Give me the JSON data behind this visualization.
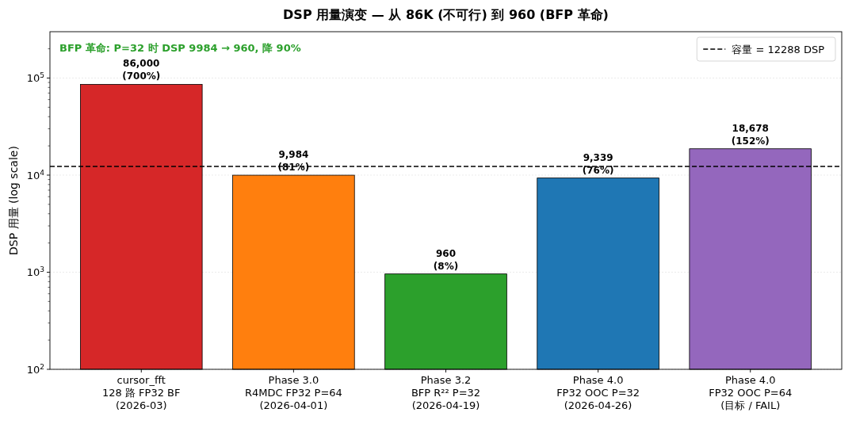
{
  "chart_data": {
    "type": "bar",
    "title": "DSP 用量演变 — 从 86K (不可行) 到 960 (BFP 革命)",
    "ylabel": "DSP 用量 (log scale)",
    "categories": [
      "cursor_fft\n128 路 FP32 BF\n(2026-03)",
      "Phase 3.0\nR4MDC FP32 P=64\n(2026-04-01)",
      "Phase 3.2\nBFP R²² P=32\n(2026-04-19)",
      "Phase 4.0\nFP32 OOC P=32\n(2026-04-26)",
      "Phase 4.0\nFP32 OOC P=64\n(目标 / FAIL)"
    ],
    "values": [
      86000,
      9984,
      960,
      9339,
      18678
    ],
    "colors": [
      "#d62728",
      "#ff7f0e",
      "#2ca02c",
      "#1f77b4",
      "#9467bd"
    ],
    "value_labels": [
      "86,000\n(700%)",
      "9,984\n(81%)",
      "960\n(8%)",
      "9,339\n(76%)",
      "18,678\n(152%)"
    ],
    "log": "y",
    "ylim": [
      100,
      300000
    ],
    "yticks": [
      {
        "value": 100,
        "label": "10$^{2}$"
      },
      {
        "value": 1000,
        "label": "10$^{3}$"
      },
      {
        "value": 10000,
        "label": "10$^{4}$"
      },
      {
        "value": 100000,
        "label": "10$^{5}$"
      }
    ],
    "grid": "y",
    "ref_lines": [
      {
        "axis": "y",
        "value": 12288,
        "label": "容量 = 12288 DSP",
        "color": "#000000",
        "line_style": "dashed"
      }
    ],
    "legend": "top right",
    "annotations": [
      "BFP 革命: P=32 时 DSP 9984 → 960, 降 90%"
    ]
  }
}
